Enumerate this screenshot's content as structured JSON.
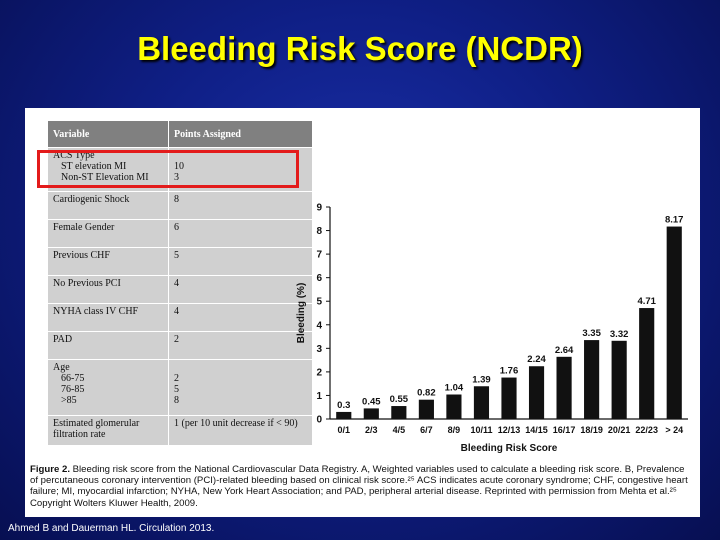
{
  "slide": {
    "title": "Bleeding Risk Score (NCDR)",
    "credit": "Ahmed B and Dauerman HL. Circulation 2013."
  },
  "table": {
    "headers": [
      "Variable",
      "Points Assigned"
    ],
    "rows": [
      {
        "variable": "ACS Type",
        "subs": [
          "ST elevation MI",
          "Non-ST Elevation MI"
        ],
        "points": [
          "",
          "10",
          "3"
        ],
        "highlighted": true
      },
      {
        "variable": "Cardiogenic Shock",
        "subs": [],
        "points": [
          "8"
        ]
      },
      {
        "variable": "Female Gender",
        "subs": [],
        "points": [
          "6"
        ]
      },
      {
        "variable": "Previous CHF",
        "subs": [],
        "points": [
          "5"
        ]
      },
      {
        "variable": "No Previous PCI",
        "subs": [],
        "points": [
          "4"
        ]
      },
      {
        "variable": "NYHA class IV CHF",
        "subs": [],
        "points": [
          "4"
        ]
      },
      {
        "variable": "PAD",
        "subs": [],
        "points": [
          "2"
        ]
      },
      {
        "variable": "Age",
        "subs": [
          "66-75",
          "76-85",
          ">85"
        ],
        "points": [
          "",
          "2",
          "5",
          "8"
        ]
      },
      {
        "variable": "Estimated glomerular filtration rate",
        "subs": [],
        "points": [
          "1 (per 10 unit decrease if < 90)"
        ]
      }
    ],
    "highlight_color": "#e31b1b"
  },
  "chart_data": {
    "type": "bar",
    "categories": [
      "0/1",
      "2/3",
      "4/5",
      "6/7",
      "8/9",
      "10/11",
      "12/13",
      "14/15",
      "16/17",
      "18/19",
      "20/21",
      "22/23",
      "> 24"
    ],
    "values": [
      0.3,
      0.45,
      0.55,
      0.82,
      1.04,
      1.39,
      1.76,
      2.24,
      2.64,
      3.35,
      3.32,
      4.71,
      8.17
    ],
    "data_labels": [
      "0.3",
      "0.45",
      "0.55",
      "0.82",
      "1.04",
      "1.39",
      "1.76",
      "2.24",
      "2.64",
      "3.35",
      "3.32",
      "4.71",
      "8.17"
    ],
    "xlabel": "Bleeding Risk Score",
    "ylabel": "Bleeding (%)",
    "ylim": [
      0,
      9
    ],
    "yticks": [
      0,
      1,
      2,
      3,
      4,
      5,
      6,
      7,
      8,
      9
    ],
    "grid": false,
    "bar_color": "#111111"
  },
  "caption": {
    "label": "Figure 2.",
    "text": "Bleeding risk score from the National Cardiovascular Data Registry. A, Weighted variables used to calculate a bleeding risk score. B, Prevalence of percutaneous coronary intervention (PCI)-related bleeding based on clinical risk score.²⁵ ACS indicates acute coronary syndrome; CHF, congestive heart failure; MI, myocardial infarction; NYHA, New York Heart Association; and PAD, peripheral arterial disease. Reprinted with permission from Mehta et al.²⁵ Copyright Wolters Kluwer Health, 2009."
  }
}
